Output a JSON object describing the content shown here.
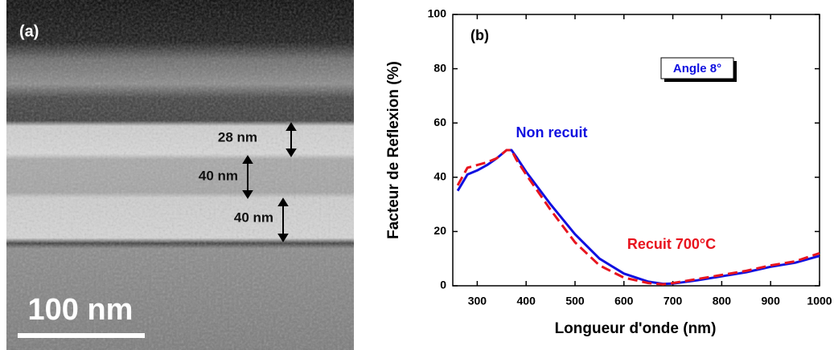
{
  "image_panel": {
    "label": "(a)",
    "thicknesses": [
      "28 nm",
      "40 nm",
      "40 nm"
    ],
    "scale_bar": "100 nm"
  },
  "chart_data": {
    "type": "line",
    "panel_label": "(b)",
    "annotation": "Angle 8°",
    "x_label": "Longueur d'onde (nm)",
    "y_label": "Facteur de Reflexion (%)",
    "xlim": [
      250,
      1000
    ],
    "xticks": [
      300,
      400,
      500,
      600,
      700,
      800,
      900,
      1000
    ],
    "ylim": [
      0,
      100
    ],
    "yticks": [
      0,
      20,
      40,
      60,
      80,
      100
    ],
    "x": [
      260,
      280,
      300,
      320,
      340,
      360,
      370,
      380,
      400,
      450,
      500,
      550,
      600,
      650,
      680,
      700,
      750,
      800,
      850,
      900,
      950,
      1000
    ],
    "series": [
      {
        "name": "Non recuit",
        "color": "#1010e0",
        "dashed": false,
        "values": [
          35,
          41,
          42.5,
          44.5,
          47,
          50,
          50,
          47.5,
          42,
          30,
          19,
          10,
          4.5,
          1.5,
          0.7,
          0.8,
          2,
          3.5,
          5,
          7,
          8.5,
          11
        ]
      },
      {
        "name": "Recuit 700°C",
        "color": "#e8141e",
        "dashed": true,
        "values": [
          37,
          43.5,
          44.5,
          45.5,
          47,
          50,
          50,
          46.5,
          41,
          28,
          16,
          7.5,
          3,
          1,
          0.5,
          1,
          2.5,
          4,
          5.5,
          7.5,
          9,
          12
        ]
      }
    ]
  }
}
